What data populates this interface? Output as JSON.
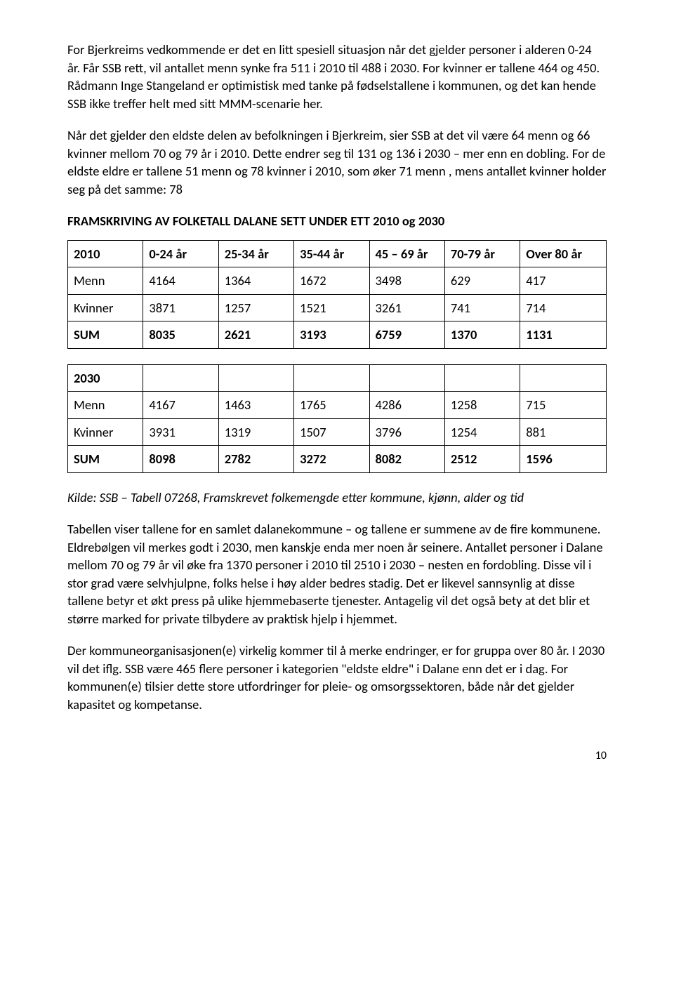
{
  "para1": "For Bjerkreims vedkommende er det en litt spesiell situasjon når det gjelder personer i alderen 0-24 år. Får SSB rett, vil antallet menn synke fra 511 i 2010 til 488 i 2030. For kvinner er tallene 464 og 450. Rådmann Inge Stangeland er optimistisk med tanke på fødselstallene i kommunen, og det kan hende SSB ikke treffer helt med sitt MMM-scenarie her.",
  "para2": "Når det gjelder den eldste delen av befolkningen i Bjerkreim, sier SSB at det vil være 64 menn og 66 kvinner mellom 70 og 79 år i 2010. Dette endrer seg til 131 og 136 i 2030 – mer enn en dobling. For de eldste eldre er tallene 51 menn og 78 kvinner i 2010, som øker 71 menn , mens antallet kvinner holder seg på det samme: 78",
  "heading": "FRAMSKRIVING AV FOLKETALL DALANE SETT UNDER ETT 2010 og 2030",
  "table1": {
    "headers": [
      "2010",
      "0-24 år",
      "25-34 år",
      "35-44 år",
      "45 – 69 år",
      "70-79 år",
      "Over 80 år"
    ],
    "rows": [
      [
        "Menn",
        "4164",
        "1364",
        "1672",
        "3498",
        "629",
        "417"
      ],
      [
        "Kvinner",
        "3871",
        "1257",
        "1521",
        "3261",
        "741",
        "714"
      ],
      [
        "SUM",
        "8035",
        "2621",
        "3193",
        "6759",
        "1370",
        "1131"
      ]
    ]
  },
  "table2": {
    "headers": [
      "2030",
      "",
      "",
      "",
      "",
      "",
      ""
    ],
    "rows": [
      [
        "Menn",
        "4167",
        "1463",
        "1765",
        "4286",
        "1258",
        "715"
      ],
      [
        "Kvinner",
        "3931",
        "1319",
        "1507",
        "3796",
        "1254",
        "881"
      ],
      [
        "SUM",
        "8098",
        "2782",
        "3272",
        "8082",
        "2512",
        "1596"
      ]
    ]
  },
  "source": "Kilde: SSB – Tabell 07268, Framskrevet folkemengde etter kommune, kjønn, alder og tid",
  "para3": "Tabellen viser tallene for en samlet dalanekommune – og tallene er summene av de fire kommunene.  Eldrebølgen vil merkes godt i 2030, men kanskje enda mer noen år seinere. Antallet personer i Dalane mellom 70 og 79 år vil øke fra 1370 personer i 2010 til 2510 i 2030 – nesten en fordobling. Disse vil i stor grad være selvhjulpne, folks helse i høy alder bedres stadig. Det er likevel sannsynlig at disse tallene betyr et  økt press på ulike hjemmebaserte tjenester. Antagelig vil det også bety at det blir et større marked for private tilbydere av praktisk hjelp i hjemmet.",
  "para4": "Der  kommuneorganisasjonen(e)  virkelig kommer til å merke endringer, er for gruppa over 80 år. I 2030 vil det iflg. SSB være 465 flere personer i kategorien \"eldste eldre\" i Dalane enn det er i dag. For kommunen(e) tilsier dette  store utfordringer for pleie- og omsorgssektoren, både når det gjelder kapasitet og kompetanse.",
  "pageNum": "10"
}
